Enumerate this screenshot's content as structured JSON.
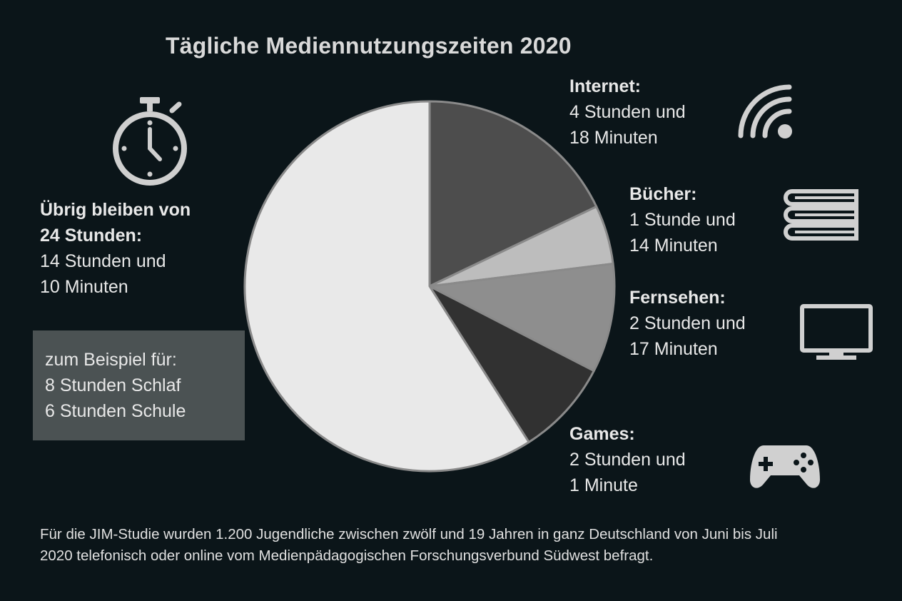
{
  "title": "Tägliche Mediennutzungszeiten 2020",
  "rest": {
    "head1": "Übrig bleiben von",
    "head2": "24 Stunden:",
    "line1": "14 Stunden und",
    "line2": "10 Minuten"
  },
  "example": {
    "line1": "zum Beispiel für:",
    "line2": "8 Stunden Schlaf",
    "line3": "6 Stunden Schule"
  },
  "categories": [
    {
      "head": "Internet:",
      "line1": "4 Stunden und",
      "line2": "18 Minuten",
      "icon": "wifi-icon"
    },
    {
      "head": "Bücher:",
      "line1": "1 Stunde und",
      "line2": "14 Minuten",
      "icon": "books-icon"
    },
    {
      "head": "Fernsehen:",
      "line1": "2 Stunden und",
      "line2": "17 Minuten",
      "icon": "tv-icon"
    },
    {
      "head": "Games:",
      "line1": "2 Stunden und",
      "line2": "1 Minute",
      "icon": "gamepad-icon"
    }
  ],
  "footnote": {
    "line1": "Für die JIM-Studie wurden 1.200 Jugendliche zwischen zwölf und 19 Jahren in ganz Deutschland von Juni bis Juli",
    "line2": "2020 telefonisch oder online vom Medienpädagogischen Forschungsverbund Südwest befragt."
  },
  "chart_data": {
    "type": "pie",
    "title": "Tägliche Mediennutzungszeiten 2020",
    "unit": "Minuten",
    "total": 1440,
    "slices": [
      {
        "label": "Internet",
        "value": 258,
        "color": "#4d4d4d"
      },
      {
        "label": "Bücher",
        "value": 74,
        "color": "#bdbdbd"
      },
      {
        "label": "Fernsehen",
        "value": 137,
        "color": "#8e8e8e"
      },
      {
        "label": "Games",
        "value": 121,
        "color": "#313131"
      },
      {
        "label": "Übrig",
        "value": 850,
        "color": "#e9e9e9"
      }
    ]
  },
  "colors": {
    "background": "#0b1519",
    "text": "#e6e6e6",
    "icon": "#d0d0d0",
    "example_box": "#4b5253"
  }
}
